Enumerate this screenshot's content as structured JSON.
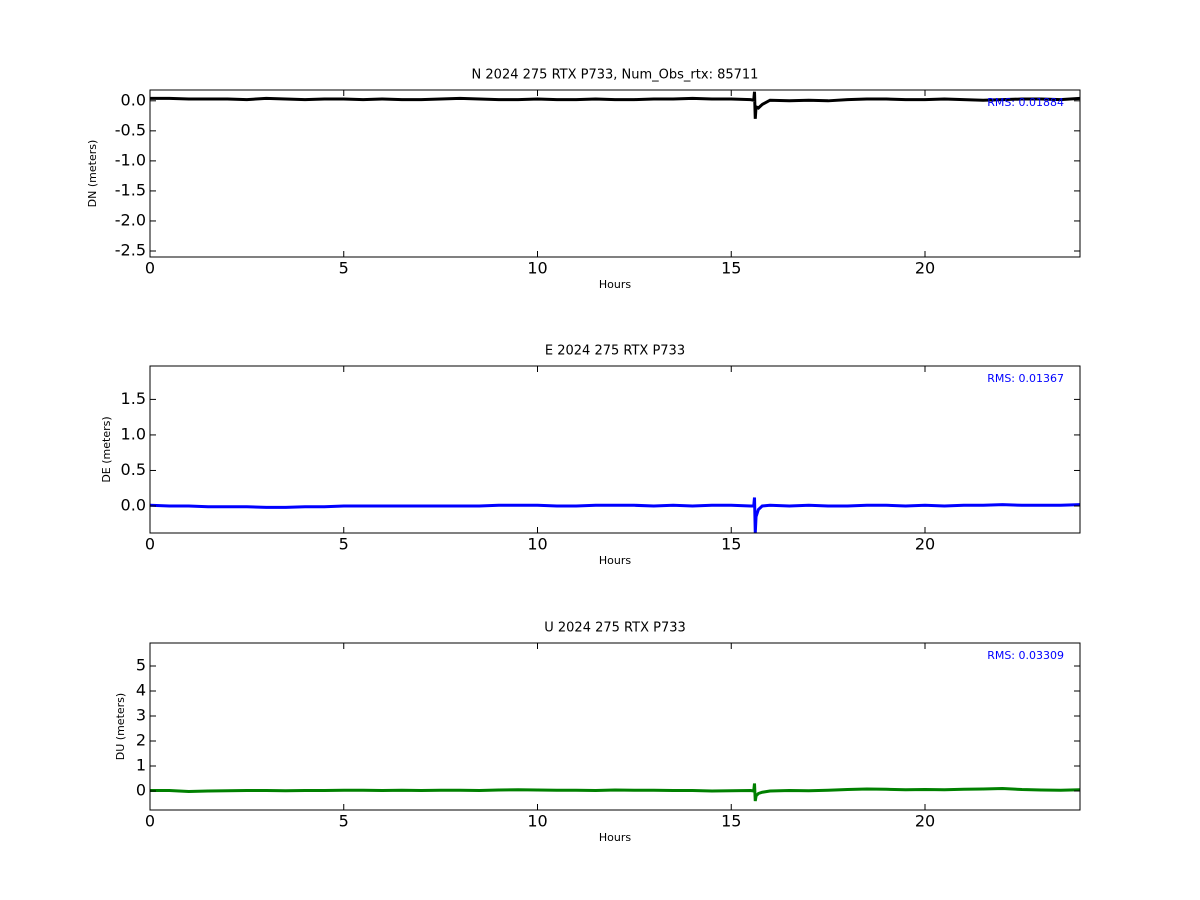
{
  "chart_data": [
    {
      "type": "line",
      "title": "N 2024 275 RTX  P733, Num_Obs_rtx: 85711",
      "xlabel": "Hours",
      "ylabel": "DN (meters)",
      "annotation": "RMS:  0.01884",
      "annotation_color": "#0000ff",
      "color": "#000000",
      "x": [
        0,
        0.5,
        1,
        1.5,
        2,
        2.5,
        3,
        3.5,
        4,
        4.5,
        5,
        5.5,
        6,
        6.5,
        7,
        7.5,
        8,
        8.5,
        9,
        9.5,
        10,
        10.5,
        11,
        11.5,
        12,
        12.5,
        13,
        13.5,
        14,
        14.5,
        15,
        15.5,
        15.58,
        15.6,
        15.62,
        15.64,
        15.7,
        15.8,
        16,
        16.5,
        17,
        17.5,
        18,
        18.5,
        19,
        19.5,
        20,
        20.5,
        21,
        21.5,
        22,
        22.5,
        23,
        23.5,
        24
      ],
      "values": [
        0.04,
        0.04,
        0.03,
        0.03,
        0.03,
        0.02,
        0.04,
        0.03,
        0.02,
        0.03,
        0.03,
        0.02,
        0.03,
        0.02,
        0.02,
        0.03,
        0.04,
        0.03,
        0.02,
        0.02,
        0.03,
        0.02,
        0.02,
        0.03,
        0.02,
        0.02,
        0.03,
        0.03,
        0.04,
        0.03,
        0.03,
        0.02,
        0.01,
        0.15,
        -0.3,
        -0.1,
        -0.12,
        -0.06,
        0.01,
        0.0,
        0.01,
        0.0,
        0.02,
        0.03,
        0.03,
        0.02,
        0.02,
        0.03,
        0.02,
        0.01,
        0.02,
        0.03,
        0.03,
        0.02,
        0.04
      ],
      "xlim": [
        0,
        24
      ],
      "xticks": [
        0,
        5,
        10,
        15,
        20
      ],
      "ylim": [
        -2.6,
        0.18
      ],
      "yticks": [
        {
          "value": 0,
          "label": "0.0"
        },
        -0.5,
        {
          "value": -1,
          "label": "-1.0"
        },
        -1.5,
        {
          "value": -2,
          "label": "-2.0"
        },
        -2.5
      ]
    },
    {
      "type": "line",
      "title": "E 2024 275 RTX  P733",
      "xlabel": "Hours",
      "ylabel": "DE (meters)",
      "annotation": "RMS:  0.01367",
      "annotation_color": "#0000ff",
      "color": "#0000ff",
      "x": [
        0,
        0.5,
        1,
        1.5,
        2,
        2.5,
        3,
        3.5,
        4,
        4.5,
        5,
        5.5,
        6,
        6.5,
        7,
        7.5,
        8,
        8.5,
        9,
        9.5,
        10,
        10.5,
        11,
        11.5,
        12,
        12.5,
        13,
        13.5,
        14,
        14.5,
        15,
        15.5,
        15.58,
        15.6,
        15.62,
        15.64,
        15.7,
        15.8,
        16,
        16.5,
        17,
        17.5,
        18,
        18.5,
        19,
        19.5,
        20,
        20.5,
        21,
        21.5,
        22,
        22.5,
        23,
        23.5,
        24
      ],
      "values": [
        0.01,
        0.0,
        0.0,
        -0.01,
        -0.01,
        -0.01,
        -0.02,
        -0.02,
        -0.01,
        -0.01,
        0.0,
        0.0,
        0.0,
        0.0,
        0.0,
        0.0,
        0.0,
        0.0,
        0.01,
        0.01,
        0.01,
        0.0,
        0.0,
        0.01,
        0.01,
        0.01,
        0.0,
        0.01,
        0.0,
        0.01,
        0.01,
        0.0,
        0.0,
        0.12,
        -0.38,
        -0.15,
        -0.05,
        0.0,
        0.01,
        0.0,
        0.01,
        0.0,
        0.0,
        0.01,
        0.01,
        0.0,
        0.01,
        0.0,
        0.01,
        0.01,
        0.02,
        0.01,
        0.01,
        0.01,
        0.02
      ],
      "xlim": [
        0,
        24
      ],
      "xticks": [
        0,
        5,
        10,
        15,
        20
      ],
      "ylim": [
        -0.38,
        1.97
      ],
      "yticks": [
        {
          "value": 0,
          "label": "0.0"
        },
        0.5,
        {
          "value": 1,
          "label": "1.0"
        },
        1.5
      ]
    },
    {
      "type": "line",
      "title": "U 2024 275 RTX  P733",
      "xlabel": "Hours",
      "ylabel": "DU (meters)",
      "annotation": "RMS:  0.03309",
      "annotation_color": "#0000ff",
      "color": "#008000",
      "x": [
        0,
        0.5,
        1,
        1.5,
        2,
        2.5,
        3,
        3.5,
        4,
        4.5,
        5,
        5.5,
        6,
        6.5,
        7,
        7.5,
        8,
        8.5,
        9,
        9.5,
        10,
        10.5,
        11,
        11.5,
        12,
        12.5,
        13,
        13.5,
        14,
        14.5,
        15,
        15.5,
        15.58,
        15.6,
        15.62,
        15.64,
        15.7,
        15.8,
        16,
        16.5,
        17,
        17.5,
        18,
        18.5,
        19,
        19.5,
        20,
        20.5,
        21,
        21.5,
        22,
        22.5,
        23,
        23.5,
        24
      ],
      "values": [
        0.02,
        0.02,
        -0.02,
        0.0,
        0.01,
        0.02,
        0.02,
        0.01,
        0.02,
        0.02,
        0.03,
        0.03,
        0.02,
        0.03,
        0.02,
        0.03,
        0.03,
        0.02,
        0.04,
        0.05,
        0.04,
        0.03,
        0.03,
        0.02,
        0.04,
        0.03,
        0.03,
        0.02,
        0.02,
        0.0,
        0.01,
        0.02,
        0.0,
        0.3,
        -0.4,
        -0.2,
        -0.1,
        -0.05,
        0.0,
        0.02,
        0.01,
        0.03,
        0.06,
        0.08,
        0.07,
        0.05,
        0.06,
        0.05,
        0.07,
        0.08,
        0.1,
        0.06,
        0.04,
        0.03,
        0.05
      ],
      "xlim": [
        0,
        24
      ],
      "xticks": [
        0,
        5,
        10,
        15,
        20
      ],
      "ylim": [
        -0.76,
        5.92
      ],
      "yticks": [
        0,
        1,
        2,
        3,
        4,
        5
      ]
    }
  ]
}
